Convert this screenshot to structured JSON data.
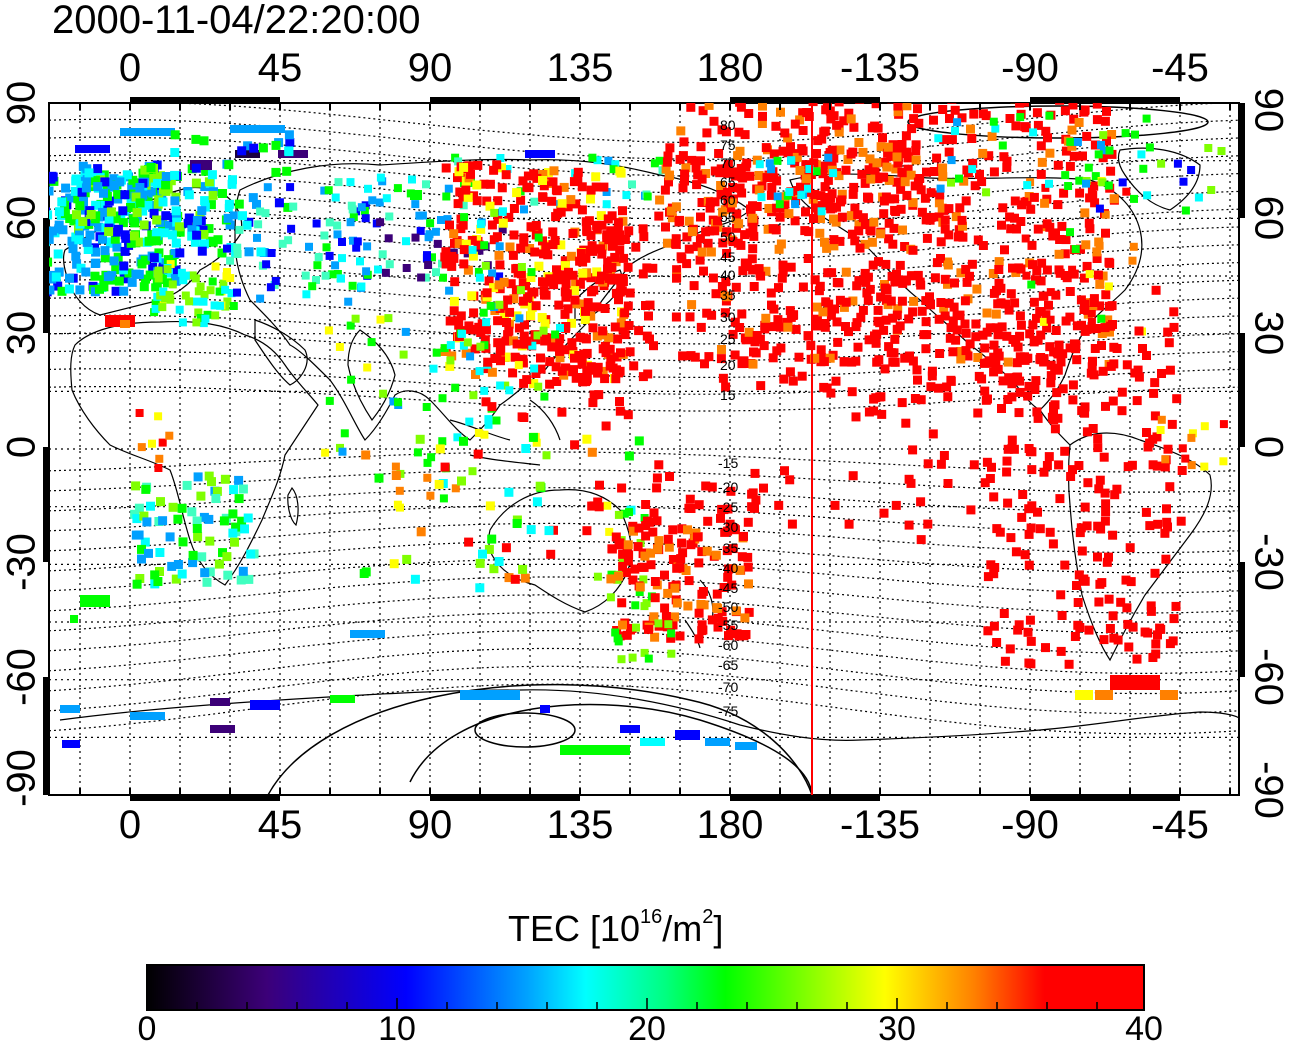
{
  "title": "2000-11-04/22:20:00",
  "map": {
    "lon_labels_top": [
      "0",
      "45",
      "90",
      "135",
      "180",
      "-135",
      "-90",
      "-45"
    ],
    "lon_labels_bottom": [
      "0",
      "45",
      "90",
      "135",
      "180",
      "-135",
      "-90",
      "-45"
    ],
    "lat_labels_left": [
      "90",
      "60",
      "30",
      "0",
      "-30",
      "-60",
      "-90"
    ],
    "lat_labels_right": [
      "90",
      "60",
      "30",
      "0",
      "-30",
      "-60",
      "-90"
    ],
    "contour_labels_north": [
      "80",
      "75",
      "70",
      "65",
      "60",
      "55",
      "50",
      "45",
      "40",
      "35",
      "30",
      "25",
      "20",
      "15"
    ],
    "contour_labels_south": [
      "-15",
      "-20",
      "-25",
      "-30",
      "-35",
      "-40",
      "-45",
      "-50",
      "-55",
      "-60",
      "-65",
      "-70",
      "-75"
    ],
    "terminator_line_color": "#ff0000"
  },
  "colorbar": {
    "title_main": "TEC  [10",
    "title_sup1": "16",
    "title_mid": "/m",
    "title_sup2": "2",
    "title_end": "]",
    "tick_labels": [
      "0",
      "10",
      "20",
      "30",
      "40"
    ],
    "colors": [
      "#000000",
      "#3c0078",
      "#0000ff",
      "#00ffff",
      "#00ff00",
      "#ffff00",
      "#ff0000"
    ]
  }
}
